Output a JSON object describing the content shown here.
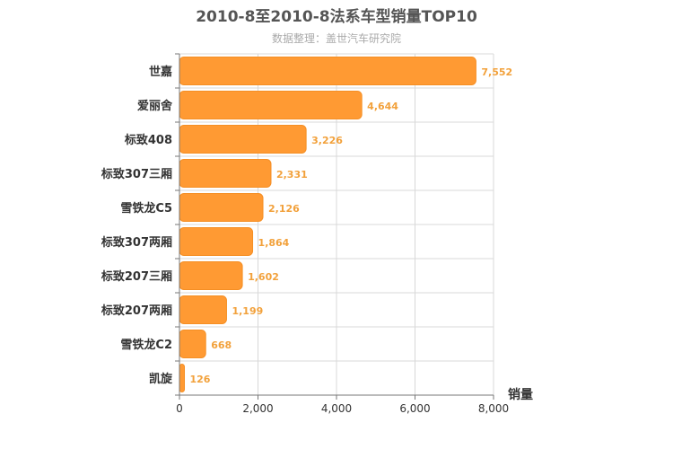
{
  "chart_data": {
    "type": "bar",
    "orientation": "horizontal",
    "title": "2010-8至2010-8法系车型销量TOP10",
    "subtitle": "数据整理：盖世汽车研究院",
    "categories": [
      "世嘉",
      "爱丽舍",
      "标致408",
      "标致307三厢",
      "雪铁龙C5",
      "标致307两厢",
      "标致207三厢",
      "标致207两厢",
      "雪铁龙C2",
      "凯旋"
    ],
    "values": [
      7552,
      4644,
      3226,
      2331,
      2126,
      1864,
      1602,
      1199,
      668,
      126
    ],
    "value_labels": [
      "7,552",
      "4,644",
      "3,226",
      "2,331",
      "2,126",
      "1,864",
      "1,602",
      "1,199",
      "668",
      "126"
    ],
    "xlabel": "销量",
    "ylabel": "",
    "xlim": [
      0,
      8000
    ],
    "ticks": [
      0,
      2000,
      4000,
      6000,
      8000
    ],
    "tick_labels": [
      "0",
      "2,000",
      "4,000",
      "6,000",
      "8,000"
    ],
    "grid": true,
    "colors": {
      "bar": "#ff9a33",
      "bar_stroke": "#f58f24",
      "value_label": "#f2a13b",
      "grid": "#d8d8d8",
      "axis": "#777777"
    }
  }
}
